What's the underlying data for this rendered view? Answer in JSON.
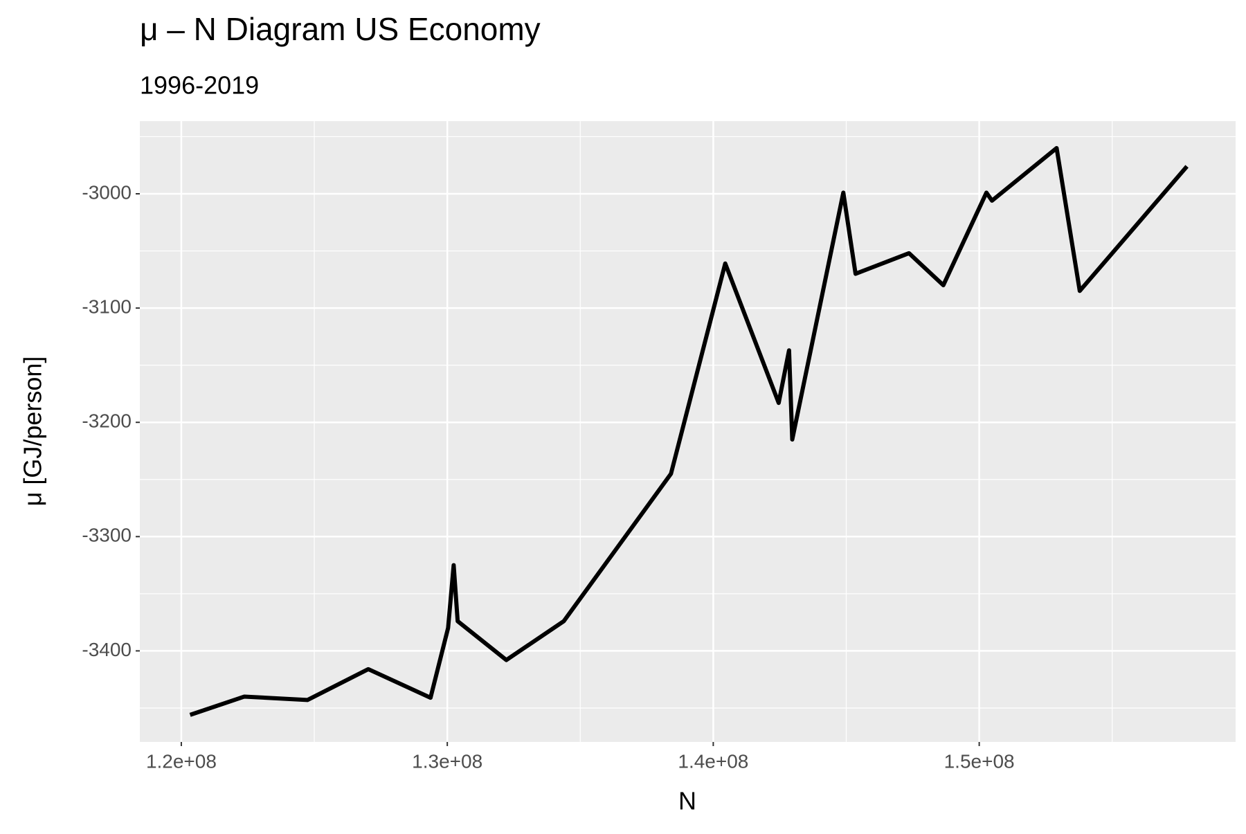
{
  "chart_data": {
    "type": "line",
    "title": "μ – N Diagram US Economy",
    "subtitle": "1996-2019",
    "x_label": "N",
    "y_label": "μ [GJ/person]",
    "x": [
      120330000,
      122370000,
      124740000,
      127030000,
      129370000,
      130030000,
      130240000,
      130390000,
      132220000,
      134380000,
      138410000,
      140450000,
      142460000,
      142850000,
      142970000,
      144890000,
      145350000,
      147360000,
      148650000,
      150270000,
      150480000,
      152910000,
      153780000,
      157810000
    ],
    "series": [
      {
        "color": "#000000",
        "values": [
          -3456,
          -3440,
          -3443,
          -3416,
          -3441,
          -3380,
          -3325,
          -3374,
          -3408,
          -3374,
          -3245,
          -3061,
          -3183,
          -3137,
          -3215,
          -2999,
          -3070,
          -3052,
          -3080,
          -2999,
          -3006,
          -2960,
          -3085,
          -2976
        ]
      }
    ],
    "xlim": [
      118440000,
      159640000
    ],
    "xticks": [
      {
        "value": 120000000,
        "label": "1.2e+08"
      },
      {
        "value": 130000000,
        "label": "1.3e+08"
      },
      {
        "value": 140000000,
        "label": "1.4e+08"
      },
      {
        "value": 150000000,
        "label": "1.5e+08"
      }
    ],
    "ylim": [
      -3479.7,
      -2936.4
    ],
    "yticks": [
      -3400,
      -3300,
      -3200,
      -3100,
      -3000
    ],
    "grid": true
  }
}
